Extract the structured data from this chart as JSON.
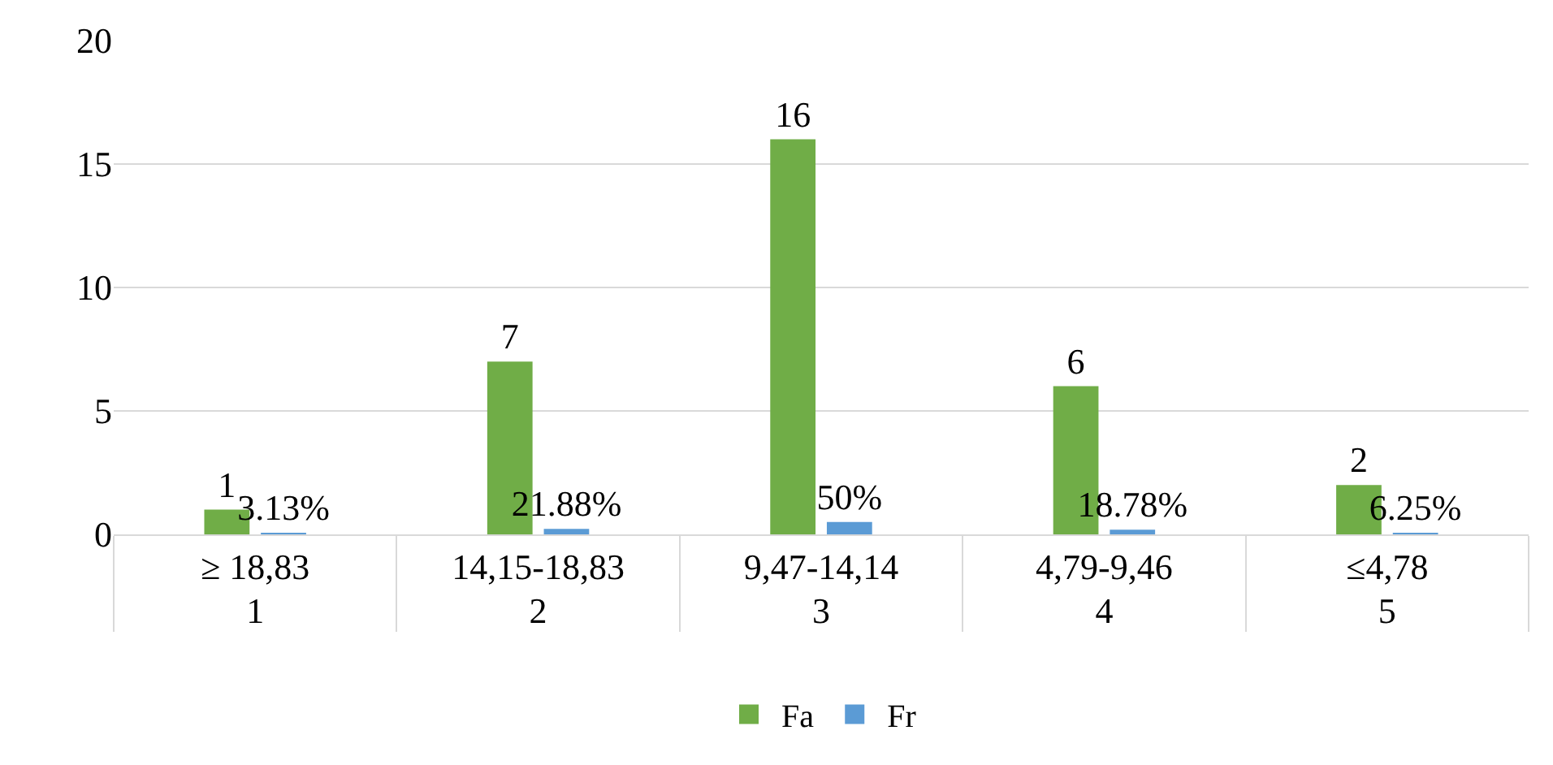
{
  "chart_data": {
    "type": "bar",
    "categories": [
      "≥ 18,83",
      "14,15-18,83",
      "9,47-14,14",
      "4,79-9,46",
      "≤4,78"
    ],
    "series": [
      {
        "name": "Fa",
        "color": "#70ad47",
        "values": [
          1,
          7,
          16,
          6,
          2
        ],
        "value_labels": [
          "1",
          "7",
          "16",
          "6",
          "2"
        ]
      },
      {
        "name": "Fr",
        "color": "#5b9bd5",
        "values": [
          0.0313,
          0.2188,
          0.5,
          0.1878,
          0.0625
        ],
        "value_labels": [
          "3.13%",
          "21.88%",
          "50%",
          "18.78%",
          "6.25%"
        ]
      }
    ],
    "annotations": [
      "1",
      "2",
      "3",
      "4",
      "5"
    ],
    "ylim": [
      0,
      20
    ],
    "yticks": [
      0,
      5,
      10,
      15,
      20
    ],
    "grid": "y",
    "legend": "bottom"
  }
}
